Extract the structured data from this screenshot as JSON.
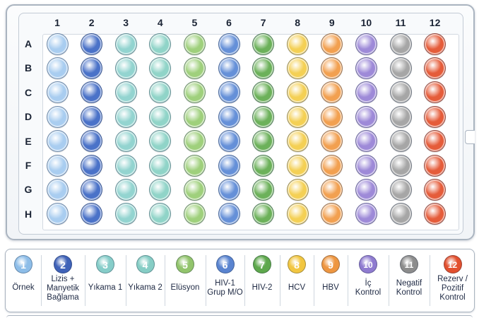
{
  "plate": {
    "columns": [
      "1",
      "2",
      "3",
      "4",
      "5",
      "6",
      "7",
      "8",
      "9",
      "10",
      "11",
      "12"
    ],
    "rows": [
      "A",
      "B",
      "C",
      "D",
      "E",
      "F",
      "G",
      "H"
    ],
    "column_colors": [
      "#a9cdf0",
      "#4a72c8",
      "#93d4d0",
      "#90d4c8",
      "#9fd07c",
      "#6590d8",
      "#6cb15a",
      "#f4d055",
      "#f2a050",
      "#9e8ad8",
      "#a6a6a6",
      "#e55c3a"
    ]
  },
  "legend": {
    "items": [
      {
        "number": "1",
        "label": "Örnek",
        "color": "#8dbde8"
      },
      {
        "number": "2",
        "label": "Lizis +\nManyetik\nBağlama",
        "color": "#3f62b8"
      },
      {
        "number": "3",
        "label": "Yıkama 1",
        "color": "#86cdc9"
      },
      {
        "number": "4",
        "label": "Yıkama 2",
        "color": "#86cdc5"
      },
      {
        "number": "5",
        "label": "Elüsyon",
        "color": "#92c46c"
      },
      {
        "number": "6",
        "label": "HIV-1\nGrup M/O",
        "color": "#5a84d0"
      },
      {
        "number": "7",
        "label": "HIV-2",
        "color": "#5ea84c"
      },
      {
        "number": "8",
        "label": "HCV",
        "color": "#f2c640"
      },
      {
        "number": "9",
        "label": "HBV",
        "color": "#ee9640"
      },
      {
        "number": "10",
        "label": "İç\nKontrol",
        "color": "#8f7bd0"
      },
      {
        "number": "11",
        "label": "Negatif\nKontrol",
        "color": "#8c8c8c"
      },
      {
        "number": "12",
        "label": "Rezerv /\nPozitif\nKontrol",
        "color": "#e2502e"
      }
    ]
  }
}
